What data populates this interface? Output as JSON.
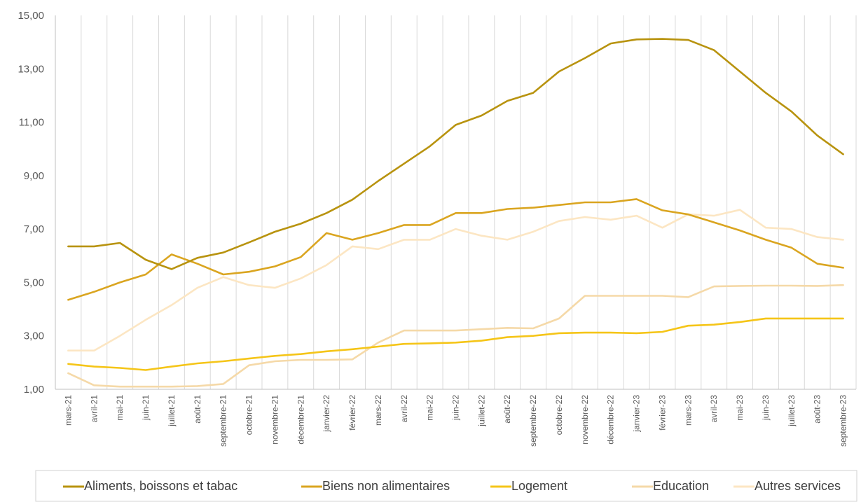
{
  "chart_data": {
    "type": "line",
    "title": "",
    "xlabel": "",
    "ylabel": "",
    "ylim": [
      1,
      15
    ],
    "y_ticks": [
      "1,00",
      "3,00",
      "5,00",
      "7,00",
      "9,00",
      "11,00",
      "13,00",
      "15,00"
    ],
    "grid": "vertical",
    "legend_position": "bottom",
    "categories": [
      "mars-21",
      "avril-21",
      "mai-21",
      "juin-21",
      "juillet-21",
      "août-21",
      "septembre-21",
      "octobre-21",
      "novembre-21",
      "décembre-21",
      "janvier-22",
      "février-22",
      "mars-22",
      "avril-22",
      "mai-22",
      "juin-22",
      "juillet-22",
      "août-22",
      "septembre-22",
      "octobre-22",
      "novembre-22",
      "décembre-22",
      "janvier-23",
      "février-23",
      "mars-23",
      "avril-23",
      "mai-23",
      "juin-23",
      "juillet-23",
      "août-23",
      "septembre-23"
    ],
    "series": [
      {
        "name": "Aliments, boissons et tabac",
        "color": "#B8930F",
        "values": [
          6.35,
          6.35,
          6.48,
          5.85,
          5.5,
          5.92,
          6.12,
          6.5,
          6.9,
          7.2,
          7.6,
          8.1,
          8.8,
          9.45,
          10.1,
          10.9,
          11.25,
          11.8,
          12.1,
          12.9,
          13.4,
          13.95,
          14.1,
          14.12,
          14.08,
          13.7,
          12.9,
          12.1,
          11.4,
          10.5,
          9.8
        ]
      },
      {
        "name": "Biens non alimentaires",
        "color": "#DAA520",
        "values": [
          4.35,
          4.65,
          5.0,
          5.3,
          6.05,
          5.7,
          5.3,
          5.4,
          5.6,
          5.95,
          6.85,
          6.6,
          6.85,
          7.15,
          7.15,
          7.6,
          7.6,
          7.75,
          7.8,
          7.9,
          8.0,
          8.0,
          8.12,
          7.7,
          7.55,
          7.25,
          6.95,
          6.6,
          6.3,
          5.7,
          5.55
        ]
      },
      {
        "name": "Logement",
        "color": "#F5C518",
        "values": [
          1.95,
          1.85,
          1.8,
          1.72,
          1.85,
          1.97,
          2.05,
          2.15,
          2.25,
          2.32,
          2.42,
          2.5,
          2.6,
          2.7,
          2.72,
          2.75,
          2.82,
          2.95,
          3.0,
          3.1,
          3.12,
          3.12,
          3.1,
          3.15,
          3.38,
          3.42,
          3.52,
          3.65,
          3.65,
          3.65,
          3.65
        ]
      },
      {
        "name": "Education",
        "color": "#F5D9A8",
        "values": [
          1.6,
          1.15,
          1.1,
          1.1,
          1.1,
          1.12,
          1.2,
          1.9,
          2.05,
          2.1,
          2.1,
          2.12,
          2.75,
          3.2,
          3.2,
          3.2,
          3.25,
          3.3,
          3.28,
          3.65,
          4.5,
          4.5,
          4.5,
          4.5,
          4.45,
          4.85,
          4.87,
          4.88,
          4.88,
          4.87,
          4.9
        ]
      },
      {
        "name": "Autres services",
        "color": "#FCE6C3",
        "values": [
          2.45,
          2.45,
          3.0,
          3.6,
          4.15,
          4.8,
          5.2,
          4.9,
          4.8,
          5.15,
          5.65,
          6.35,
          6.25,
          6.6,
          6.6,
          7.0,
          6.75,
          6.6,
          6.9,
          7.3,
          7.45,
          7.35,
          7.5,
          7.05,
          7.55,
          7.5,
          7.72,
          7.05,
          7.0,
          6.7,
          6.6
        ]
      }
    ]
  }
}
